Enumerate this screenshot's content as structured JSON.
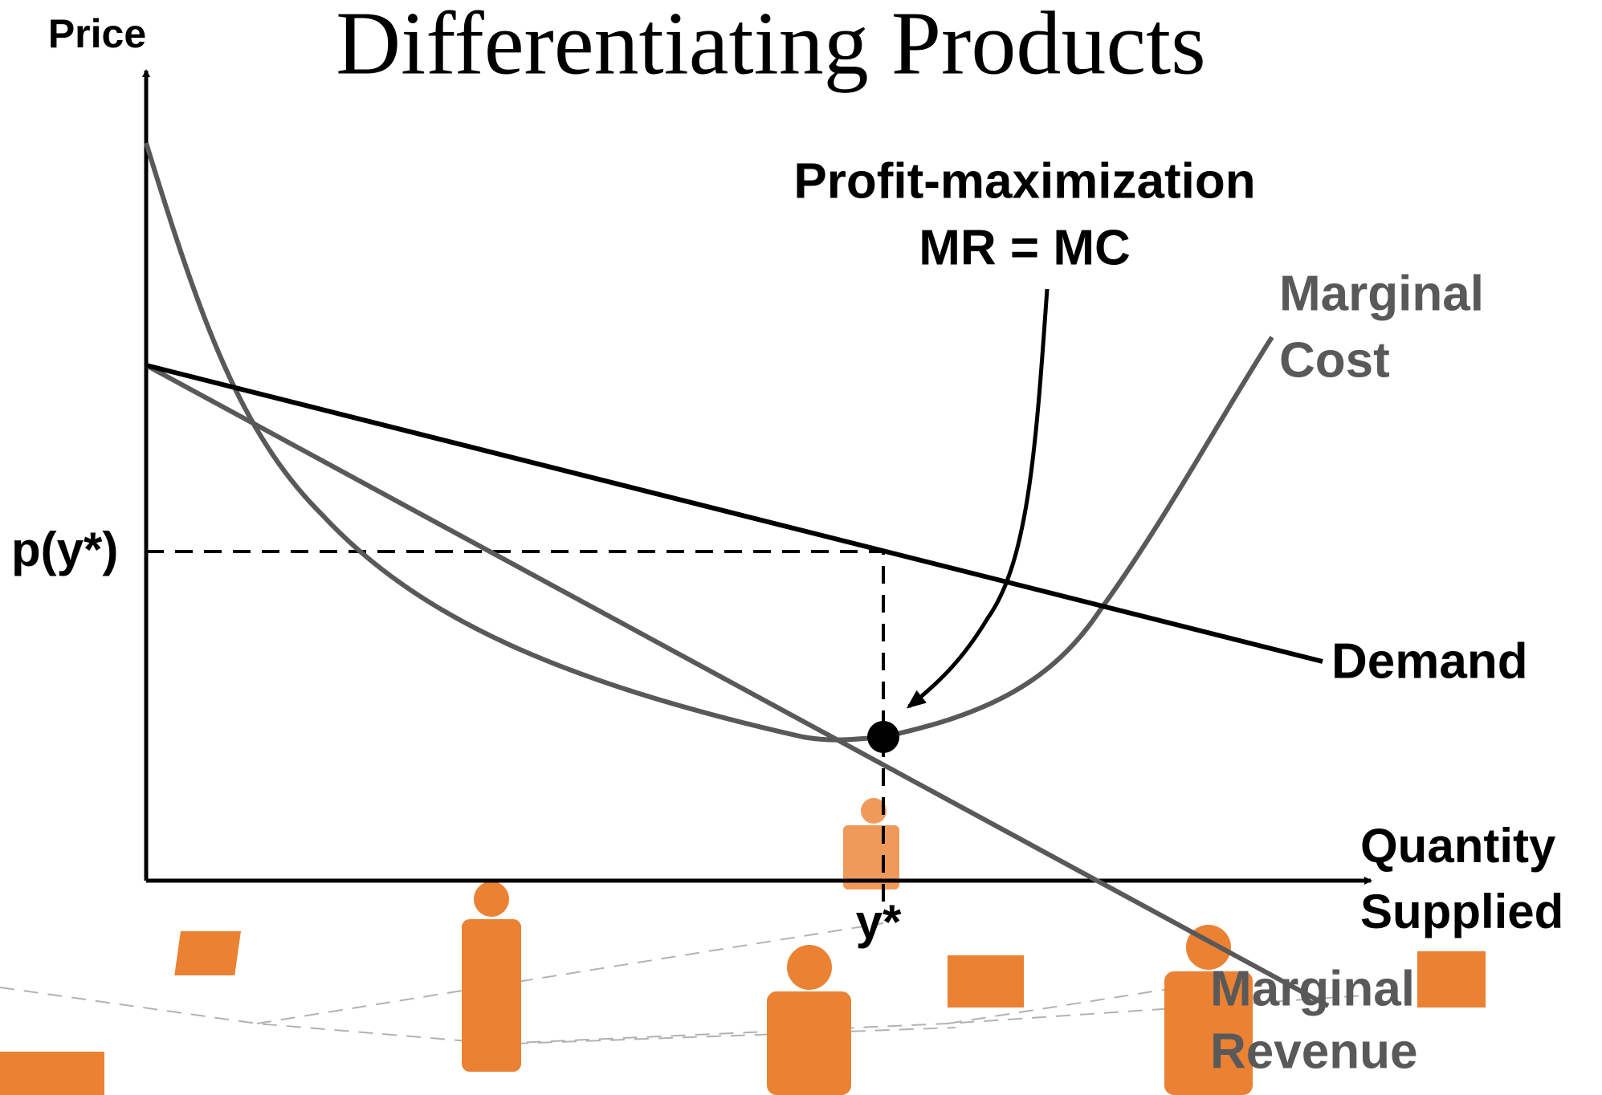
{
  "title": "Differentiating Products",
  "axes": {
    "y_label": "Price",
    "x_label": [
      "Quantity",
      "Supplied"
    ],
    "price_tick": "p(y*)",
    "quantity_tick": "y*"
  },
  "annotation": [
    "Profit-maximization",
    "MR = MC"
  ],
  "curves": {
    "marginal_cost": [
      "Marginal",
      "Cost"
    ],
    "demand": "Demand",
    "marginal_revenue": [
      "Marginal",
      "Revenue"
    ]
  }
}
